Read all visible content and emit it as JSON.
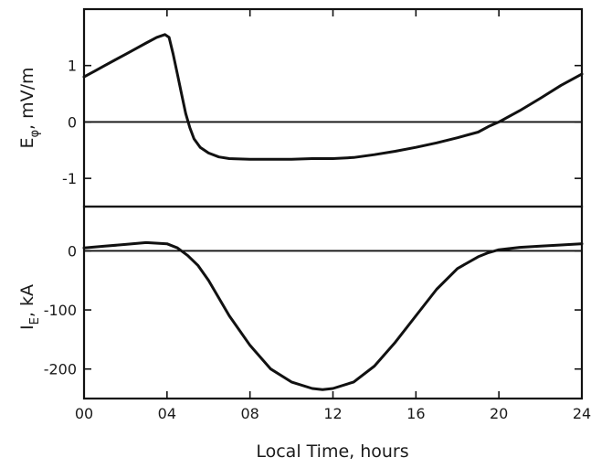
{
  "chart_data": [
    {
      "type": "line",
      "id": "top",
      "ylabel": "E",
      "ylabel_subscript": "φ",
      "ylabel_unit": ", mV/m",
      "xlim": [
        0,
        24
      ],
      "ylim": [
        -1.5,
        2.0
      ],
      "yticks": [
        1,
        0,
        -1
      ],
      "ytick_labels": [
        "1",
        "0",
        "-1"
      ],
      "zero_line": true,
      "series": [
        {
          "x": [
            0,
            0.5,
            1,
            1.5,
            2,
            2.5,
            3,
            3.5,
            3.9,
            4.1,
            4.3,
            4.5,
            4.7,
            4.9,
            5.1,
            5.3,
            5.6,
            6,
            6.5,
            7,
            8,
            9,
            10,
            11,
            12,
            13,
            14,
            15,
            16,
            17,
            18,
            19,
            19.5,
            20,
            21,
            22,
            23,
            24
          ],
          "y": [
            0.8,
            0.9,
            1.0,
            1.1,
            1.2,
            1.3,
            1.4,
            1.5,
            1.55,
            1.5,
            1.2,
            0.85,
            0.5,
            0.15,
            -0.1,
            -0.3,
            -0.45,
            -0.55,
            -0.62,
            -0.65,
            -0.66,
            -0.66,
            -0.66,
            -0.65,
            -0.65,
            -0.63,
            -0.58,
            -0.52,
            -0.45,
            -0.37,
            -0.28,
            -0.18,
            -0.08,
            0.0,
            0.2,
            0.42,
            0.65,
            0.85
          ]
        }
      ]
    },
    {
      "type": "line",
      "id": "bottom",
      "ylabel": "I",
      "ylabel_subscript": "E",
      "ylabel_unit": ", kA",
      "xlabel": "Local Time, hours",
      "xlim": [
        0,
        24
      ],
      "ylim": [
        -250,
        75
      ],
      "yticks": [
        0,
        -100,
        -200
      ],
      "ytick_labels": [
        "0",
        "-100",
        "-200"
      ],
      "xticks": [
        0,
        4,
        8,
        12,
        16,
        20,
        24
      ],
      "xtick_labels": [
        "00",
        "04",
        "08",
        "12",
        "16",
        "20",
        "24"
      ],
      "zero_line": true,
      "series": [
        {
          "x": [
            0,
            1,
            2,
            3,
            4,
            4.5,
            5,
            5.5,
            6,
            7,
            8,
            9,
            10,
            11,
            11.5,
            12,
            13,
            14,
            15,
            16,
            17,
            18,
            19,
            19.5,
            20,
            21,
            22,
            23,
            24
          ],
          "y": [
            5,
            8,
            11,
            14,
            12,
            5,
            -8,
            -25,
            -50,
            -110,
            -160,
            -200,
            -222,
            -233,
            -235,
            -233,
            -222,
            -195,
            -155,
            -110,
            -65,
            -30,
            -10,
            -3,
            2,
            6,
            8,
            10,
            12
          ]
        }
      ]
    }
  ]
}
